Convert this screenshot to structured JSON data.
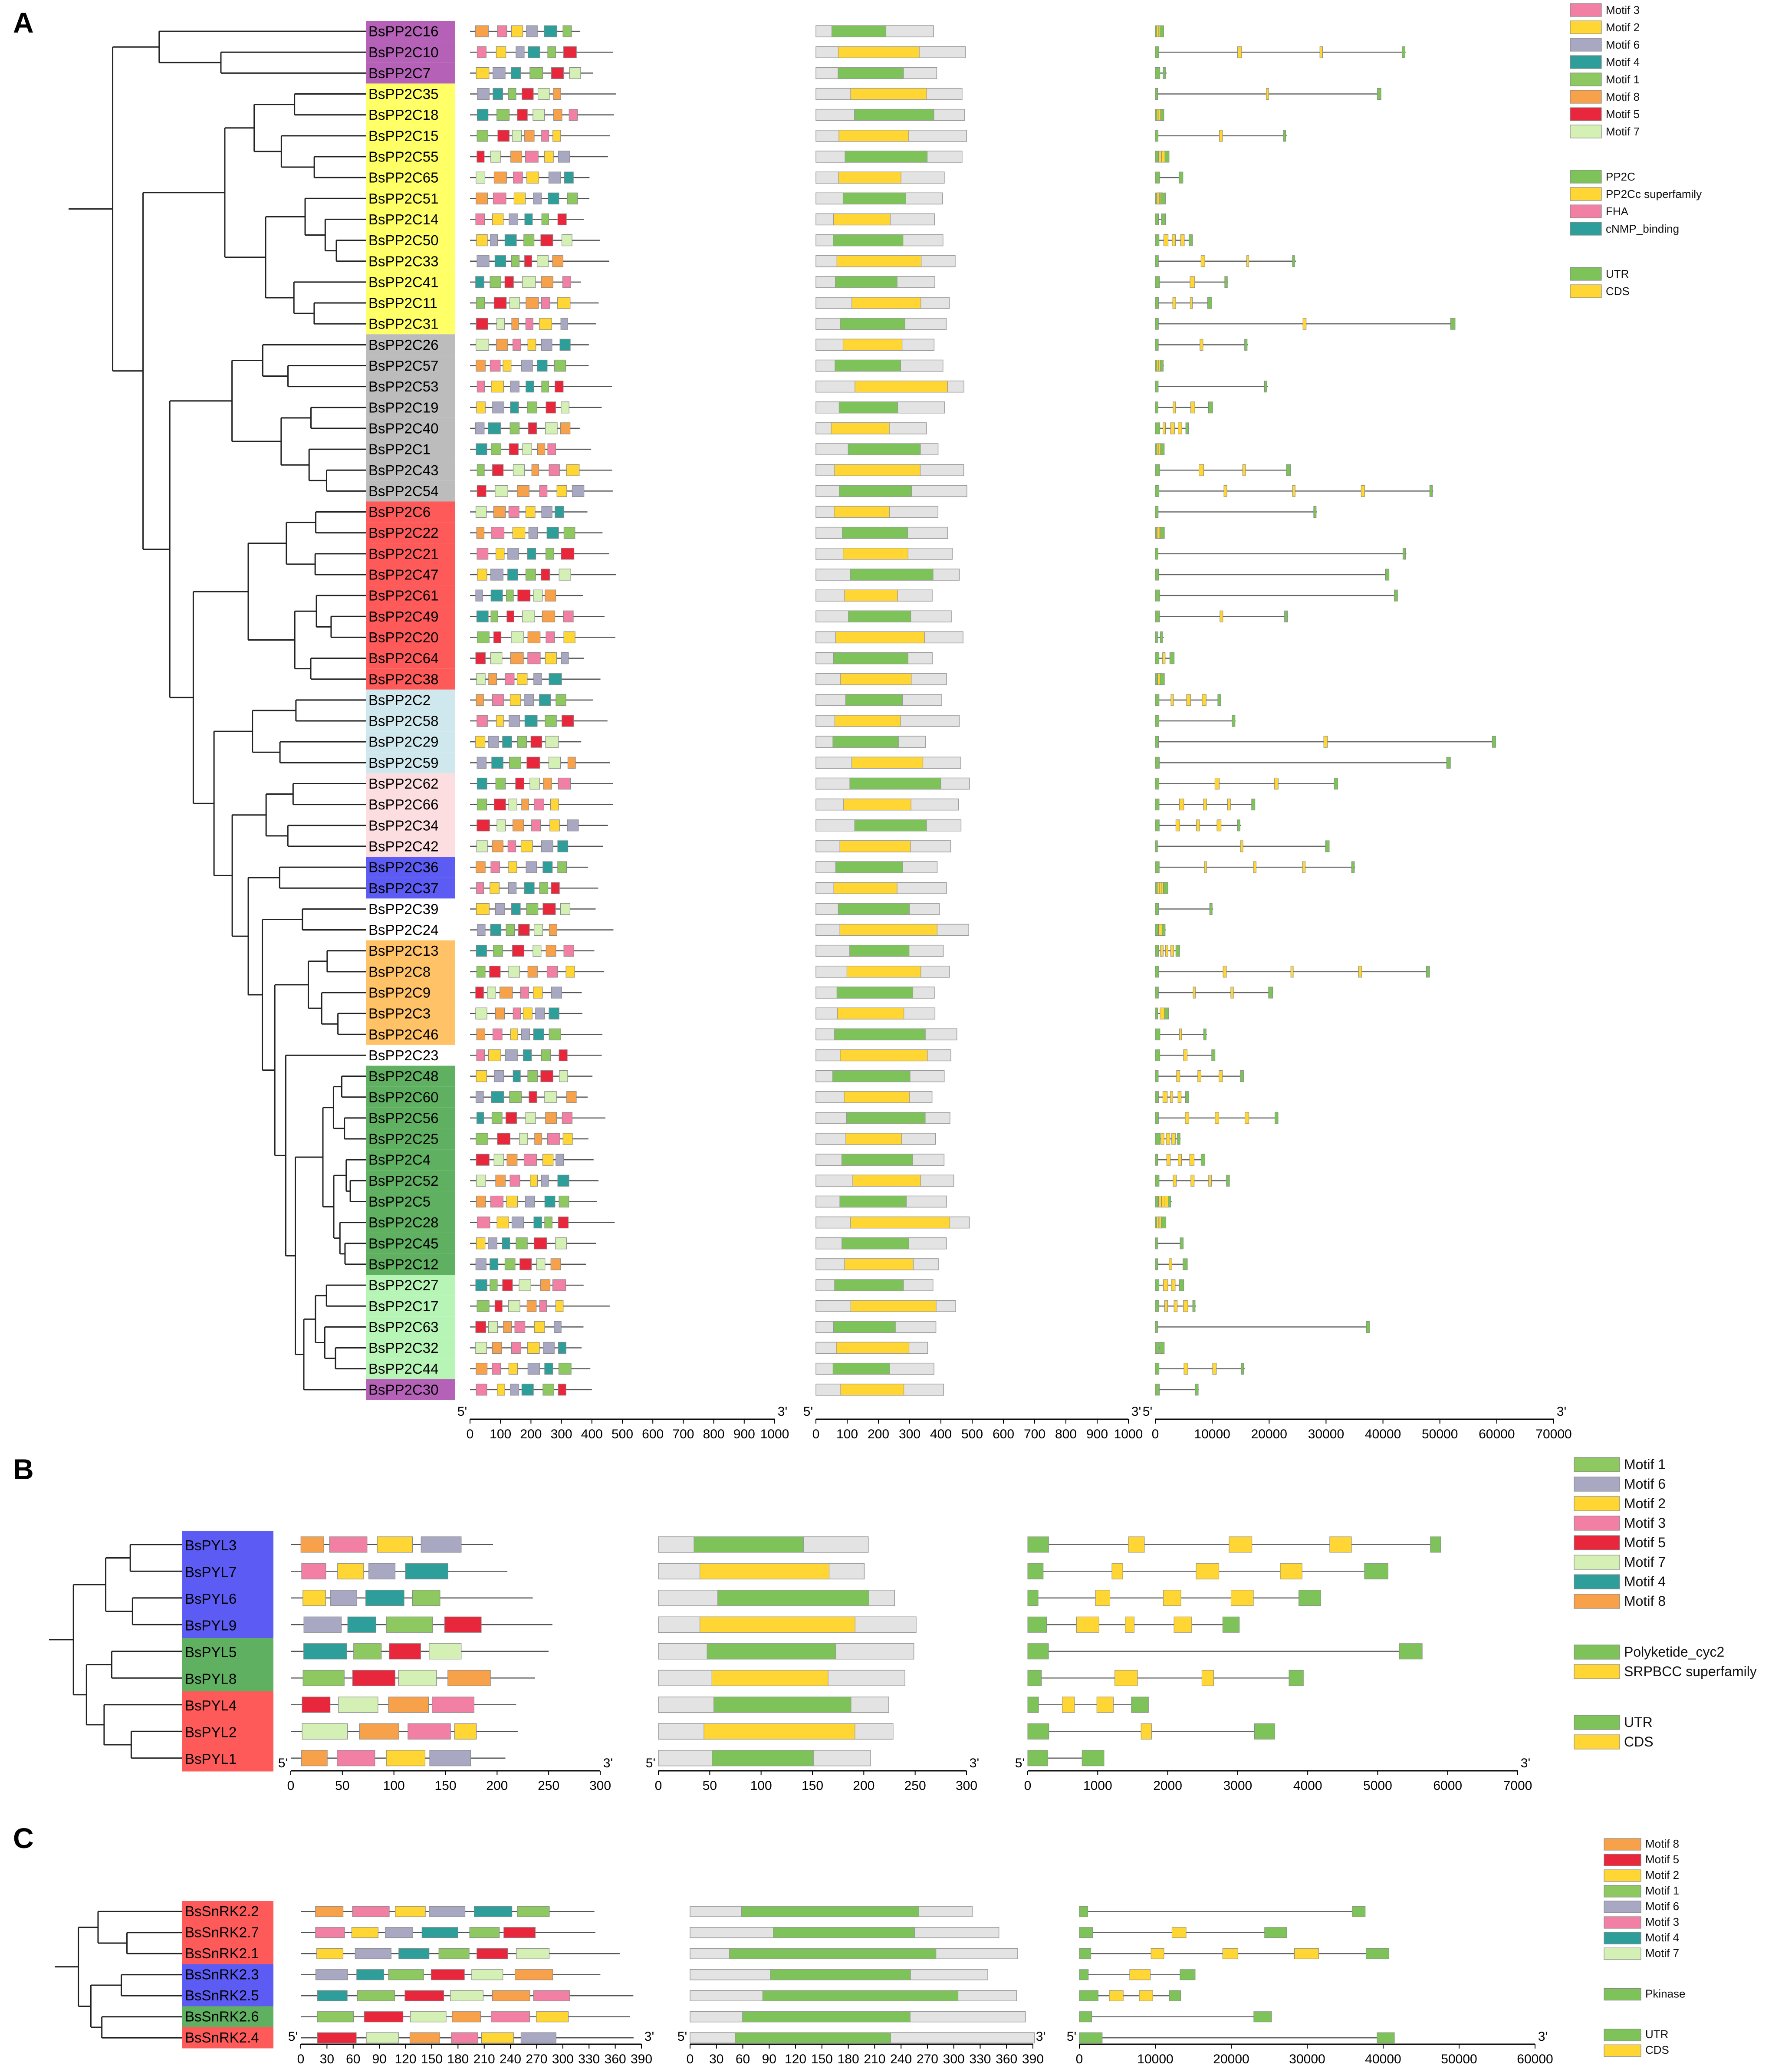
{
  "panels": {
    "A": {
      "label": "A",
      "genes": [
        "BsPP2C16",
        "BsPP2C10",
        "BsPP2C7",
        "BsPP2C35",
        "BsPP2C18",
        "BsPP2C15",
        "BsPP2C55",
        "BsPP2C65",
        "BsPP2C51",
        "BsPP2C14",
        "BsPP2C50",
        "BsPP2C33",
        "BsPP2C41",
        "BsPP2C11",
        "BsPP2C31",
        "BsPP2C26",
        "BsPP2C57",
        "BsPP2C53",
        "BsPP2C19",
        "BsPP2C40",
        "BsPP2C1",
        "BsPP2C43",
        "BsPP2C54",
        "BsPP2C6",
        "BsPP2C22",
        "BsPP2C21",
        "BsPP2C47",
        "BsPP2C61",
        "BsPP2C49",
        "BsPP2C20",
        "BsPP2C64",
        "BsPP2C38",
        "BsPP2C2",
        "BsPP2C58",
        "BsPP2C29",
        "BsPP2C59",
        "BsPP2C62",
        "BsPP2C66",
        "BsPP2C34",
        "BsPP2C42",
        "BsPP2C36",
        "BsPP2C37",
        "BsPP2C39",
        "BsPP2C24",
        "BsPP2C13",
        "BsPP2C8",
        "BsPP2C9",
        "BsPP2C3",
        "BsPP2C46",
        "BsPP2C23",
        "BsPP2C48",
        "BsPP2C60",
        "BsPP2C56",
        "BsPP2C25",
        "BsPP2C4",
        "BsPP2C52",
        "BsPP2C5",
        "BsPP2C28",
        "BsPP2C45",
        "BsPP2C12",
        "BsPP2C27",
        "BsPP2C17",
        "BsPP2C63",
        "BsPP2C32",
        "BsPP2C44",
        "BsPP2C30"
      ],
      "groups": [
        {
          "count": 3,
          "color": "#b561b8"
        },
        {
          "count": 12,
          "color": "#ffff66"
        },
        {
          "count": 8,
          "color": "#bcbcbc"
        },
        {
          "count": 9,
          "color": "#ff5a5a"
        },
        {
          "count": 4,
          "color": "#cfe8ee"
        },
        {
          "count": 4,
          "color": "#fcdde0"
        },
        {
          "count": 2,
          "color": "#5c5cf5"
        },
        {
          "count": 2,
          "color": "#ffffff"
        },
        {
          "count": 5,
          "color": "#ffc266"
        },
        {
          "count": 1,
          "color": "#ffffff"
        },
        {
          "count": 10,
          "color": "#5fb061"
        },
        {
          "count": 5,
          "color": "#b7f5b7"
        },
        {
          "count": 1,
          "color": "#b561b8"
        }
      ],
      "motif_legend": [
        "Motif 3",
        "Motif 2",
        "Motif 6",
        "Motif 4",
        "Motif 1",
        "Motif 8",
        "Motif 5",
        "Motif 7"
      ],
      "domain_legend": [
        "PP2C",
        "PP2Cc superfamily",
        "FHA",
        "cNMP_binding"
      ],
      "structure_legend": [
        "UTR",
        "CDS"
      ],
      "axis1": {
        "end_left": "5'",
        "end_right": "3'",
        "ticks": [
          "0",
          "100",
          "200",
          "300",
          "400",
          "500",
          "600",
          "700",
          "800",
          "900",
          "1000"
        ]
      },
      "axis2": {
        "end_left": "5'",
        "end_right": "3'",
        "ticks": [
          "0",
          "100",
          "200",
          "300",
          "400",
          "500",
          "600",
          "700",
          "800",
          "900",
          "1000"
        ]
      },
      "axis3": {
        "end_left": "5'",
        "end_right": "3'",
        "ticks": [
          "0",
          "10000",
          "20000",
          "30000",
          "40000",
          "50000",
          "60000",
          "70000"
        ]
      }
    },
    "B": {
      "label": "B",
      "genes": [
        "BsPYL3",
        "BsPYL7",
        "BsPYL6",
        "BsPYL9",
        "BsPYL5",
        "BsPYL8",
        "BsPYL4",
        "BsPYL2",
        "BsPYL1"
      ],
      "groups": [
        {
          "count": 4,
          "color": "#5c5cf5"
        },
        {
          "count": 2,
          "color": "#5fb061"
        },
        {
          "count": 3,
          "color": "#ff5a5a"
        }
      ],
      "motif_legend": [
        "Motif 1",
        "Motif 6",
        "Motif 2",
        "Motif 3",
        "Motif 5",
        "Motif 7",
        "Motif 4",
        "Motif 8"
      ],
      "domain_legend": [
        "Polyketide_cyc2",
        "SRPBCC superfamily"
      ],
      "structure_legend": [
        "UTR",
        "CDS"
      ],
      "axis1": {
        "end_left": "5'",
        "end_right": "3'",
        "ticks": [
          "0",
          "50",
          "100",
          "150",
          "200",
          "250",
          "300"
        ]
      },
      "axis2": {
        "end_left": "5'",
        "end_right": "3'",
        "ticks": [
          "0",
          "50",
          "100",
          "150",
          "200",
          "250",
          "300"
        ]
      },
      "axis3": {
        "end_left": "5'",
        "end_right": "3'",
        "ticks": [
          "0",
          "1000",
          "2000",
          "3000",
          "4000",
          "5000",
          "6000",
          "7000"
        ]
      }
    },
    "C": {
      "label": "C",
      "genes": [
        "BsSnRK2.2",
        "BsSnRK2.7",
        "BsSnRK2.1",
        "BsSnRK2.3",
        "BsSnRK2.5",
        "BsSnRK2.6",
        "BsSnRK2.4"
      ],
      "groups": [
        {
          "count": 3,
          "color": "#ff5a5a"
        },
        {
          "count": 2,
          "color": "#5c5cf5"
        },
        {
          "count": 1,
          "color": "#5fb061"
        },
        {
          "count": 1,
          "color": "#ff5a5a"
        }
      ],
      "motif_legend": [
        "Motif 8",
        "Motif 5",
        "Motif 2",
        "Motif 1",
        "Motif 6",
        "Motif 3",
        "Motif 4",
        "Motif 7"
      ],
      "domain_legend": [
        "Pkinase"
      ],
      "structure_legend": [
        "UTR",
        "CDS"
      ],
      "axis1": {
        "end_left": "5'",
        "end_right": "3'",
        "ticks": [
          "0",
          "30",
          "60",
          "90",
          "120",
          "150",
          "180",
          "210",
          "240",
          "270",
          "300",
          "330",
          "360",
          "390"
        ]
      },
      "axis2": {
        "end_left": "5'",
        "end_right": "3'",
        "ticks": [
          "0",
          "30",
          "60",
          "90",
          "120",
          "150",
          "180",
          "210",
          "240",
          "270",
          "300",
          "330",
          "360",
          "390"
        ]
      },
      "axis3": {
        "end_left": "5'",
        "end_right": "3'",
        "ticks": [
          "0",
          "10000",
          "20000",
          "30000",
          "40000",
          "50000",
          "60000"
        ]
      }
    }
  },
  "colors": {
    "Motif 1": "#8dc860",
    "Motif 2": "#ffd633",
    "Motif 3": "#f27fa4",
    "Motif 4": "#2e9e9b",
    "Motif 5": "#e8263c",
    "Motif 6": "#a8a8c2",
    "Motif 7": "#d5f0b5",
    "Motif 8": "#f7a14a",
    "PP2C": "#7dc35a",
    "PP2Cc superfamily": "#ffd633",
    "FHA": "#f27fa4",
    "cNMP_binding": "#2e9e9b",
    "Polyketide_cyc2": "#7dc35a",
    "SRPBCC superfamily": "#ffd633",
    "Pkinase": "#7dc35a",
    "UTR": "#7dc35a",
    "CDS": "#ffd633"
  }
}
